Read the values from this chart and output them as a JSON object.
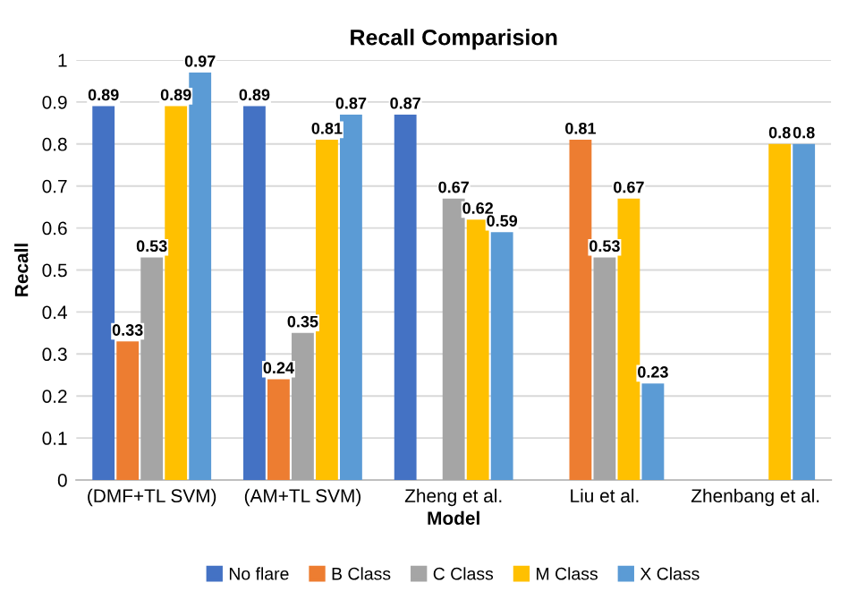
{
  "chart_data": {
    "type": "bar",
    "title": "Recall Comparision",
    "xlabel": "Model",
    "ylabel": "Recall",
    "categories": [
      "(DMF+TL SVM)",
      "(AM+TL SVM)",
      "Zheng et al.",
      "Liu et al.",
      "Zhenbang et al."
    ],
    "series": [
      {
        "name": "No flare",
        "color": "#4472c4",
        "values": [
          0.89,
          0.89,
          0.87,
          null,
          null
        ]
      },
      {
        "name": "B Class",
        "color": "#ed7d31",
        "values": [
          0.33,
          0.24,
          null,
          0.81,
          null
        ]
      },
      {
        "name": "C Class",
        "color": "#a5a5a5",
        "values": [
          0.53,
          0.35,
          0.67,
          0.53,
          null
        ]
      },
      {
        "name": "M Class",
        "color": "#ffc000",
        "values": [
          0.89,
          0.81,
          0.62,
          0.67,
          0.8
        ]
      },
      {
        "name": "X Class",
        "color": "#5b9bd5",
        "values": [
          0.97,
          0.87,
          0.59,
          0.23,
          0.8
        ]
      }
    ],
    "ylim": [
      0,
      1
    ],
    "yticks": [
      0,
      0.1,
      0.2,
      0.3,
      0.4,
      0.5,
      0.6,
      0.7,
      0.8,
      0.9,
      1
    ],
    "grid": "y",
    "legend": "bottom",
    "data_labels": true
  }
}
